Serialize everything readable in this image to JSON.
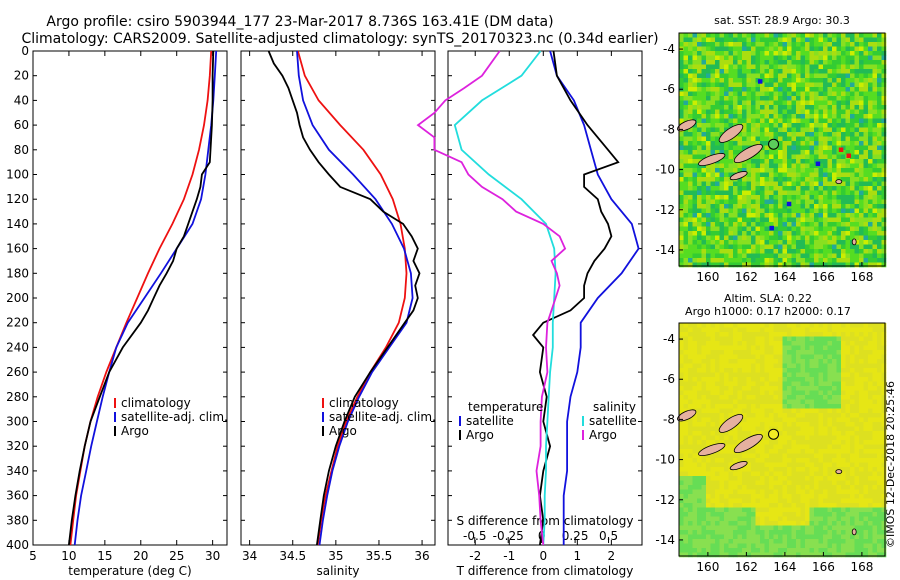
{
  "title": {
    "line1": "Argo profile: csiro 5903944_177 23-Mar-2017 8.736S 163.41E (DM data)",
    "line2": "Climatology: CARS2009. Satellite-adjusted climatology: synTS_20170323.nc (0.34d earlier)"
  },
  "credit": "©IMOS 12-Dec-2018 20:25:46",
  "colors": {
    "red": "#ee1111",
    "blue": "#1111dd",
    "black": "#000000",
    "cyan": "#22dddd",
    "magenta": "#dd22dd"
  },
  "chart_data": [
    {
      "type": "line",
      "xlabel": "temperature (deg C)",
      "xlim": [
        5,
        32
      ],
      "ylim": [
        400,
        0
      ],
      "xticks": [
        "5",
        "10",
        "15",
        "20",
        "25",
        "30"
      ],
      "xtick_values": [
        5,
        10,
        15,
        20,
        25,
        30
      ],
      "yticks": [
        "0",
        "20",
        "40",
        "60",
        "80",
        "100",
        "120",
        "140",
        "160",
        "180",
        "200",
        "220",
        "240",
        "260",
        "280",
        "300",
        "320",
        "340",
        "360",
        "380",
        "400"
      ],
      "legend": [
        "climatology",
        "satellite-adj. clim.",
        "Argo"
      ],
      "series": [
        {
          "name": "climatology",
          "color": "red",
          "depth": [
            0,
            20,
            40,
            60,
            80,
            100,
            120,
            140,
            160,
            180,
            200,
            220,
            240,
            260,
            280,
            300,
            320,
            340,
            360,
            380,
            400
          ],
          "values": [
            29.8,
            29.6,
            29.3,
            28.8,
            28.1,
            27.2,
            26.0,
            24.4,
            22.6,
            21.0,
            19.5,
            18.0,
            16.6,
            15.2,
            14.0,
            13.0,
            12.2,
            11.6,
            11.0,
            10.6,
            10.2
          ]
        },
        {
          "name": "satellite-adj. clim.",
          "color": "blue",
          "depth": [
            0,
            20,
            40,
            60,
            80,
            100,
            120,
            140,
            160,
            180,
            200,
            220,
            240,
            260,
            280,
            300,
            320,
            340,
            360,
            380,
            400
          ],
          "values": [
            30.5,
            30.3,
            30.1,
            29.8,
            29.4,
            29.0,
            28.4,
            27.2,
            25.0,
            22.8,
            20.5,
            18.2,
            16.6,
            15.6,
            14.7,
            13.9,
            13.1,
            12.4,
            11.7,
            11.2,
            10.8
          ]
        },
        {
          "name": "Argo",
          "color": "black",
          "depth": [
            0,
            20,
            40,
            60,
            80,
            90,
            100,
            110,
            120,
            130,
            140,
            150,
            160,
            170,
            180,
            190,
            200,
            210,
            220,
            240,
            260,
            280,
            300,
            320,
            340,
            360,
            380,
            400
          ],
          "values": [
            30.1,
            30.0,
            30.0,
            29.9,
            29.7,
            29.6,
            28.5,
            28.3,
            27.8,
            27.2,
            26.6,
            26.0,
            25.0,
            24.5,
            23.6,
            22.6,
            21.8,
            21.0,
            20.0,
            17.5,
            15.6,
            14.3,
            13.0,
            12.2,
            11.5,
            10.9,
            10.4,
            10.0
          ]
        }
      ]
    },
    {
      "type": "line",
      "xlabel": "salinity",
      "xlim": [
        33.9,
        36.15
      ],
      "ylim": [
        400,
        0
      ],
      "xticks": [
        "34",
        "34.5",
        "35",
        "35.5",
        "36"
      ],
      "xtick_values": [
        34,
        34.5,
        35,
        35.5,
        36
      ],
      "legend": [
        "climatology",
        "satellite-adj. clim.",
        "Argo"
      ],
      "series": [
        {
          "name": "climatology",
          "color": "red",
          "depth": [
            0,
            20,
            40,
            60,
            80,
            100,
            120,
            140,
            160,
            180,
            200,
            220,
            240,
            260,
            280,
            300,
            320,
            340,
            360,
            380,
            400
          ],
          "values": [
            34.56,
            34.64,
            34.8,
            35.05,
            35.32,
            35.52,
            35.66,
            35.75,
            35.8,
            35.82,
            35.8,
            35.73,
            35.58,
            35.4,
            35.25,
            35.12,
            35.02,
            34.95,
            34.88,
            34.83,
            34.79
          ]
        },
        {
          "name": "satellite-adj. clim.",
          "color": "blue",
          "depth": [
            0,
            20,
            40,
            60,
            80,
            100,
            120,
            140,
            160,
            180,
            200,
            220,
            240,
            260,
            280,
            300,
            320,
            340,
            360,
            380,
            400
          ],
          "values": [
            34.55,
            34.57,
            34.62,
            34.73,
            34.92,
            35.2,
            35.46,
            35.65,
            35.79,
            35.87,
            35.89,
            35.82,
            35.62,
            35.42,
            35.27,
            35.14,
            35.04,
            34.96,
            34.9,
            34.85,
            34.81
          ]
        },
        {
          "name": "Argo",
          "color": "black",
          "depth": [
            0,
            10,
            20,
            30,
            40,
            50,
            60,
            70,
            80,
            90,
            100,
            110,
            120,
            130,
            140,
            150,
            160,
            170,
            180,
            190,
            200,
            210,
            220,
            240,
            260,
            280,
            300,
            320,
            340,
            360,
            380,
            400
          ],
          "values": [
            34.22,
            34.28,
            34.38,
            34.45,
            34.5,
            34.55,
            34.58,
            34.62,
            34.7,
            34.8,
            34.92,
            35.05,
            35.4,
            35.55,
            35.78,
            35.88,
            35.95,
            35.9,
            35.97,
            35.92,
            35.95,
            35.9,
            35.8,
            35.6,
            35.4,
            35.22,
            35.1,
            35.0,
            34.92,
            34.86,
            34.82,
            34.78
          ]
        }
      ]
    },
    {
      "type": "line",
      "xlabel": "T difference from climatology",
      "xlabel2": "S difference from climatology",
      "xlim": [
        -2.8,
        2.9
      ],
      "ylim": [
        400,
        0
      ],
      "xticks": [
        "-2",
        "-1",
        "0",
        "1",
        "2"
      ],
      "xtick_values": [
        -2,
        -1,
        0,
        1,
        2
      ],
      "sticks": [
        "-0.5",
        "-0.25",
        "0",
        "0.25",
        "0.5"
      ],
      "stick_values": [
        -0.5,
        -0.25,
        0,
        0.25,
        0.5
      ],
      "legend_t": [
        "temperature",
        "satellite",
        "Argo"
      ],
      "legend_s": [
        "salinity",
        "satellite",
        "Argo"
      ],
      "series": [
        {
          "name": "T satellite",
          "color": "blue",
          "depth": [
            0,
            20,
            40,
            60,
            80,
            100,
            120,
            140,
            160,
            180,
            200,
            220,
            240,
            260,
            280,
            300,
            320,
            340,
            360,
            380,
            400
          ],
          "values": [
            0.2,
            0.4,
            0.9,
            1.2,
            1.4,
            1.6,
            2.0,
            2.6,
            2.8,
            2.3,
            1.6,
            1.1,
            1.1,
            1.0,
            0.8,
            0.7,
            0.7,
            0.7,
            0.6,
            0.6,
            0.6
          ]
        },
        {
          "name": "T Argo",
          "color": "black",
          "depth": [
            0,
            20,
            40,
            60,
            80,
            90,
            100,
            110,
            120,
            130,
            140,
            150,
            160,
            170,
            180,
            190,
            200,
            210,
            220,
            230,
            240,
            260,
            280,
            300,
            320,
            340,
            360,
            380,
            400
          ],
          "values": [
            0.3,
            0.4,
            0.8,
            1.3,
            1.9,
            2.2,
            1.2,
            1.2,
            1.6,
            1.7,
            1.9,
            2.0,
            1.8,
            1.5,
            1.3,
            1.2,
            1.2,
            0.8,
            0.0,
            -0.3,
            0.0,
            -0.1,
            0.1,
            0.0,
            0.2,
            0.0,
            -0.1,
            0.0,
            -0.1
          ]
        },
        {
          "name": "S satellite",
          "color": "cyan",
          "depth": [
            0,
            20,
            40,
            60,
            80,
            100,
            120,
            140,
            160,
            180,
            200,
            220,
            240,
            260,
            280,
            300,
            320,
            340,
            360,
            380,
            400
          ],
          "values": [
            -0.02,
            -0.16,
            -0.45,
            -0.65,
            -0.6,
            -0.4,
            -0.16,
            0.02,
            0.08,
            0.09,
            0.08,
            0.07,
            0.07,
            0.05,
            0.04,
            0.03,
            0.02,
            0.02,
            0.01,
            0.01,
            0.0
          ]
        },
        {
          "name": "S Argo",
          "color": "magenta",
          "depth": [
            0,
            20,
            30,
            40,
            50,
            60,
            70,
            80,
            90,
            100,
            110,
            120,
            130,
            140,
            150,
            160,
            170,
            180,
            190,
            200,
            220,
            240,
            260,
            280,
            300,
            320,
            340,
            360,
            380,
            400
          ],
          "values": [
            -0.32,
            -0.45,
            -0.58,
            -0.72,
            -0.8,
            -0.92,
            -0.8,
            -0.8,
            -0.6,
            -0.55,
            -0.45,
            -0.3,
            -0.2,
            0.0,
            0.12,
            0.16,
            0.06,
            0.1,
            0.12,
            0.09,
            0.03,
            0.02,
            0.03,
            -0.01,
            -0.02,
            -0.02,
            -0.05,
            -0.03,
            -0.02,
            0.0
          ]
        }
      ]
    },
    {
      "type": "heatmap",
      "title": "sat. SST: 28.9 Argo: 30.3",
      "xticks": [
        "160",
        "162",
        "164",
        "166",
        "168"
      ],
      "xtick_values": [
        160,
        162,
        164,
        166,
        168
      ],
      "yticks": [
        "-4",
        "-6",
        "-8",
        "-10",
        "-12",
        "-14"
      ],
      "ytick_values": [
        -4,
        -6,
        -8,
        -10,
        -12,
        -14
      ],
      "xlim": [
        158.5,
        169.2
      ],
      "ylim": [
        -14.8,
        -3.2
      ],
      "marker": [
        163.41,
        -8.736
      ]
    },
    {
      "type": "heatmap",
      "title": "Altim. SLA: 0.22",
      "title2": "Argo h1000: 0.17 h2000: 0.17",
      "xticks": [
        "160",
        "162",
        "164",
        "166",
        "168"
      ],
      "xtick_values": [
        160,
        162,
        164,
        166,
        168
      ],
      "yticks": [
        "-4",
        "-6",
        "-8",
        "-10",
        "-12",
        "-14"
      ],
      "ytick_values": [
        -4,
        -6,
        -8,
        -10,
        -12,
        -14
      ],
      "xlim": [
        158.5,
        169.2
      ],
      "ylim": [
        -14.8,
        -3.2
      ],
      "marker": [
        163.41,
        -8.736
      ]
    }
  ]
}
